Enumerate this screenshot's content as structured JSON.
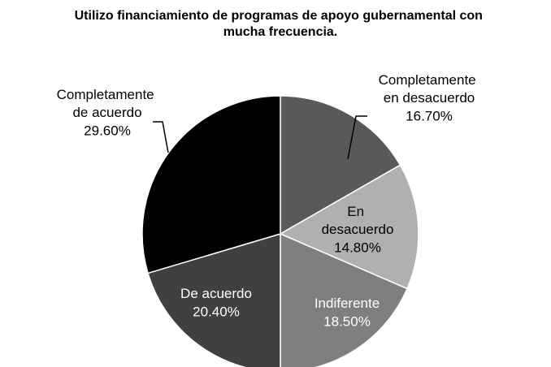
{
  "chart_data": {
    "type": "pie",
    "title": "Utilizo financiamiento de programas de apoyo gubernamental con mucha frecuencia.",
    "categories": [
      "Completamente en desacuerdo",
      "En desacuerdo",
      "Indiferente",
      "De acuerdo",
      "Completamente de acuerdo"
    ],
    "values": [
      16.7,
      14.8,
      18.5,
      20.4,
      29.6
    ],
    "value_labels": [
      "16.70%",
      "14.80%",
      "18.50%",
      "20.40%",
      "29.60%"
    ],
    "colors": [
      "#595959",
      "#b0b0b0",
      "#7f7f7f",
      "#404040",
      "#000000"
    ]
  }
}
